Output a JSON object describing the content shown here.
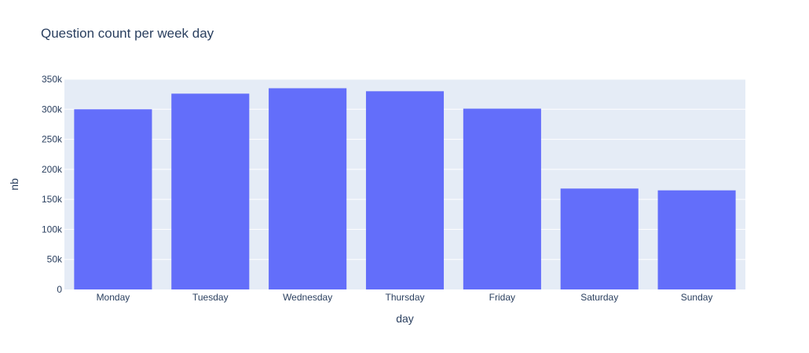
{
  "chart_data": {
    "type": "bar",
    "title": "Question count per week day",
    "xlabel": "day",
    "ylabel": "nb",
    "categories": [
      "Monday",
      "Tuesday",
      "Wednesday",
      "Thursday",
      "Friday",
      "Saturday",
      "Sunday"
    ],
    "values": [
      300000,
      326000,
      335000,
      330000,
      301000,
      168000,
      165000
    ],
    "ylim": [
      0,
      350000
    ],
    "y_ticks": [
      0,
      50000,
      100000,
      150000,
      200000,
      250000,
      300000,
      350000
    ],
    "y_tick_labels": [
      "0",
      "50k",
      "100k",
      "150k",
      "200k",
      "250k",
      "300k",
      "350k"
    ],
    "grid": true,
    "colors": {
      "bar": "#636efa",
      "plot_bg": "#e5ecf6",
      "grid": "#ffffff",
      "text": "#2a3f5f"
    }
  }
}
